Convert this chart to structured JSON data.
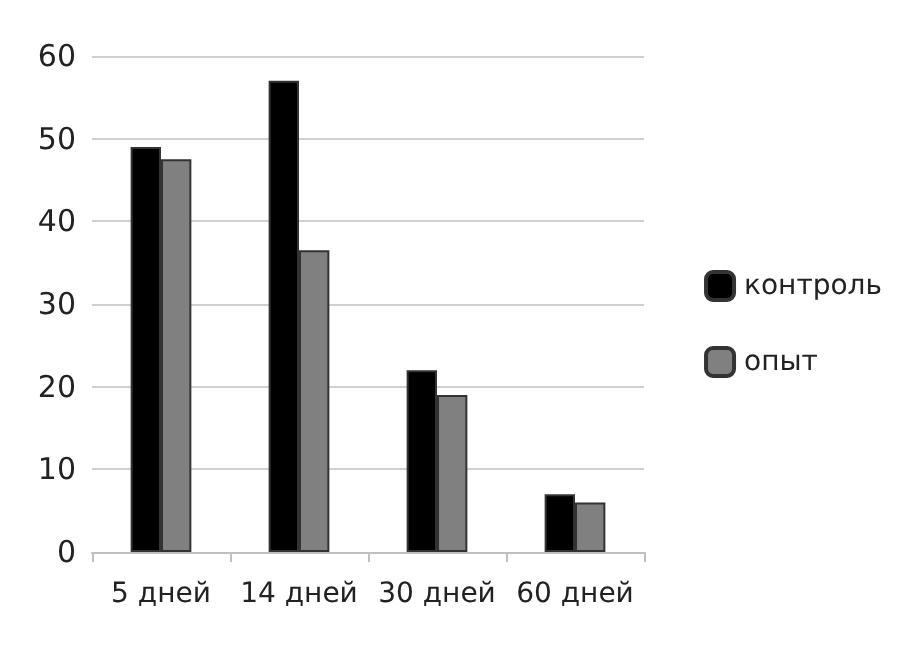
{
  "chart_data": {
    "type": "bar",
    "categories": [
      "5 дней",
      "14 дней",
      "30 дней",
      "60 дней"
    ],
    "series": [
      {
        "name": "контроль",
        "color": "#000000",
        "values": [
          49,
          57,
          22,
          7
        ]
      },
      {
        "name": "опыт",
        "color": "#808080",
        "values": [
          47.5,
          36.5,
          19,
          6
        ]
      }
    ],
    "ylim": [
      0,
      60
    ],
    "yticks": [
      0,
      10,
      20,
      30,
      40,
      50,
      60
    ],
    "grid": "y",
    "legend": "right"
  }
}
